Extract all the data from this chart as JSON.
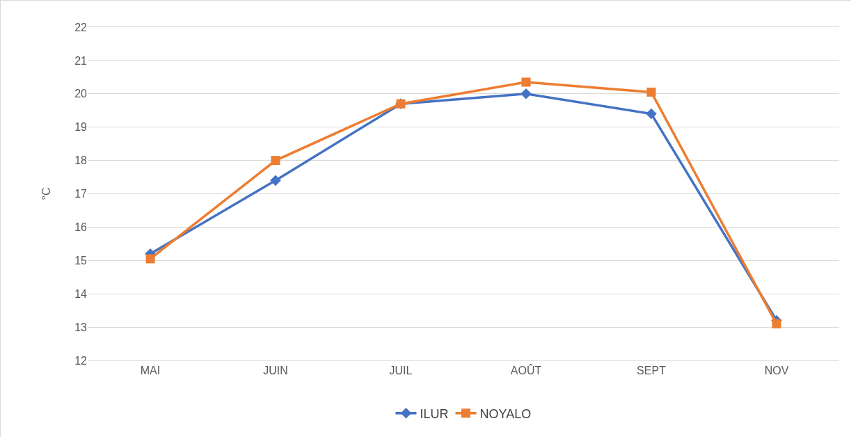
{
  "chart_data": {
    "type": "line",
    "ylabel": "°C",
    "categories": [
      "MAI",
      "JUIN",
      "JUIL",
      "AOÛT",
      "SEPT",
      "NOV"
    ],
    "series": [
      {
        "name": "ILUR",
        "color": "#4472c4",
        "marker": "diamond",
        "values": [
          15.2,
          17.4,
          19.7,
          20.0,
          19.4,
          13.2
        ]
      },
      {
        "name": "NOYALO",
        "color": "#ed7d31",
        "marker": "square",
        "values": [
          15.05,
          18.0,
          19.7,
          20.35,
          20.05,
          13.1
        ]
      }
    ],
    "ylim": [
      12,
      22
    ],
    "yticks": [
      12,
      13,
      14,
      15,
      16,
      17,
      18,
      19,
      20,
      21,
      22
    ],
    "grid": "y",
    "legend": "bottom",
    "line_style": "solid"
  }
}
